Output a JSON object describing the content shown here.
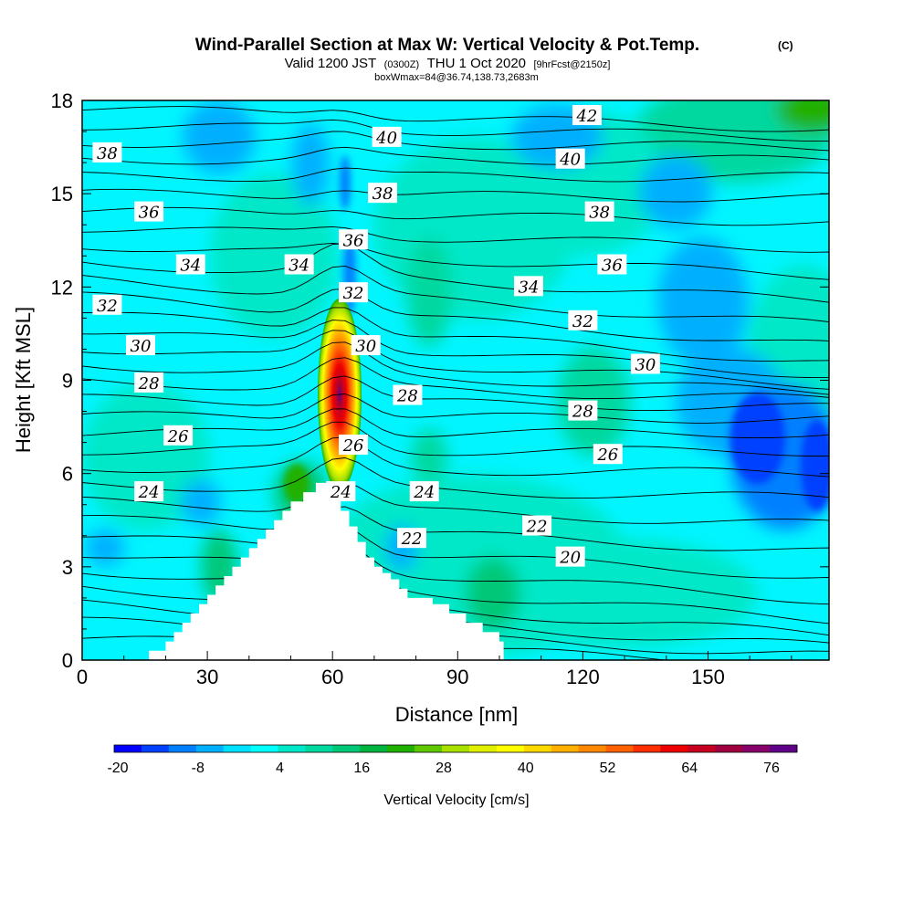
{
  "chart_data": {
    "type": "heatmap",
    "title": "Wind-Parallel Section at Max W: Vertical Velocity & Pot.Temp.",
    "copyright": "(C)",
    "subtitle_main": "Valid 1200 JST",
    "subtitle_utc": "(0300Z)",
    "subtitle_date": "THU 1 Oct 2020",
    "subtitle_fcst": "[9hrFcst@2150z]",
    "subtitle2": "boxWmax=84@36.74,138.73,2683m",
    "xlabel": "Distance [nm]",
    "ylabel": "Height [Kft MSL]",
    "xlim": [
      0,
      179
    ],
    "ylim": [
      0,
      18
    ],
    "xticks": [
      0,
      30,
      60,
      90,
      120,
      150
    ],
    "yticks": [
      0,
      3,
      6,
      9,
      12,
      15,
      18
    ],
    "colorbar_label": "Vertical Velocity [cm/s]",
    "colorbar_ticks": [
      "-20",
      "-8",
      "4",
      "16",
      "28",
      "40",
      "52",
      "64",
      "76"
    ],
    "colorbar_colors": [
      "#0000ff",
      "#0040ff",
      "#0080ff",
      "#00b0ff",
      "#00e0ff",
      "#00ffff",
      "#00e8c8",
      "#00d8a0",
      "#00c878",
      "#00b440",
      "#20b000",
      "#60c800",
      "#a8e000",
      "#e0f000",
      "#ffff00",
      "#ffd800",
      "#ffb000",
      "#ff8800",
      "#ff6000",
      "#ff3000",
      "#ee0000",
      "#c80020",
      "#a00040",
      "#88006a",
      "#600088"
    ],
    "terrain_profile": [
      [
        16,
        0
      ],
      [
        16,
        0.3
      ],
      [
        20,
        0.3
      ],
      [
        20,
        0.6
      ],
      [
        22,
        0.6
      ],
      [
        22,
        0.9
      ],
      [
        24,
        0.9
      ],
      [
        24,
        1.2
      ],
      [
        26,
        1.2
      ],
      [
        26,
        1.5
      ],
      [
        28,
        1.5
      ],
      [
        28,
        1.8
      ],
      [
        30,
        1.8
      ],
      [
        30,
        2.1
      ],
      [
        32,
        2.1
      ],
      [
        32,
        2.4
      ],
      [
        34,
        2.4
      ],
      [
        34,
        2.7
      ],
      [
        36,
        2.7
      ],
      [
        36,
        3.0
      ],
      [
        38,
        3.0
      ],
      [
        38,
        3.3
      ],
      [
        40,
        3.3
      ],
      [
        40,
        3.6
      ],
      [
        42,
        3.6
      ],
      [
        42,
        3.9
      ],
      [
        44,
        3.9
      ],
      [
        44,
        4.2
      ],
      [
        46,
        4.2
      ],
      [
        46,
        4.5
      ],
      [
        48,
        4.5
      ],
      [
        48,
        4.8
      ],
      [
        50,
        4.8
      ],
      [
        50,
        5.1
      ],
      [
        53,
        5.1
      ],
      [
        53,
        5.4
      ],
      [
        56,
        5.4
      ],
      [
        56,
        5.7
      ],
      [
        60,
        5.7
      ],
      [
        60,
        5.3
      ],
      [
        62,
        5.3
      ],
      [
        62,
        4.8
      ],
      [
        64,
        4.8
      ],
      [
        64,
        4.3
      ],
      [
        66,
        4.3
      ],
      [
        66,
        3.8
      ],
      [
        68,
        3.8
      ],
      [
        68,
        3.3
      ],
      [
        70,
        3.3
      ],
      [
        70,
        3.0
      ],
      [
        72,
        3.0
      ],
      [
        72,
        2.8
      ],
      [
        74,
        2.8
      ],
      [
        74,
        2.6
      ],
      [
        76,
        2.6
      ],
      [
        76,
        2.3
      ],
      [
        78,
        2.3
      ],
      [
        78,
        2.0
      ],
      [
        84,
        2.0
      ],
      [
        84,
        1.8
      ],
      [
        88,
        1.8
      ],
      [
        88,
        1.5
      ],
      [
        92,
        1.5
      ],
      [
        92,
        1.2
      ],
      [
        96,
        1.2
      ],
      [
        96,
        0.9
      ],
      [
        100,
        0.9
      ],
      [
        100,
        0.6
      ],
      [
        101,
        0.6
      ],
      [
        101,
        0
      ]
    ],
    "updraft_core": {
      "x_center": 61,
      "base_kft": 5.5,
      "top_kft": 11.5,
      "max_cm_s": 84
    },
    "theta_contour_labels": [
      {
        "text": "38",
        "x": 6,
        "y": 16.3
      },
      {
        "text": "40",
        "x": 73,
        "y": 16.8
      },
      {
        "text": "42",
        "x": 121,
        "y": 17.5
      },
      {
        "text": "40",
        "x": 117,
        "y": 16.1
      },
      {
        "text": "38",
        "x": 72,
        "y": 15.0
      },
      {
        "text": "36",
        "x": 16,
        "y": 14.4
      },
      {
        "text": "38",
        "x": 124,
        "y": 14.4
      },
      {
        "text": "36",
        "x": 65,
        "y": 13.5
      },
      {
        "text": "34",
        "x": 26,
        "y": 12.7
      },
      {
        "text": "34",
        "x": 52,
        "y": 12.7
      },
      {
        "text": "36",
        "x": 127,
        "y": 12.7
      },
      {
        "text": "32",
        "x": 6,
        "y": 11.4
      },
      {
        "text": "34",
        "x": 107,
        "y": 12.0
      },
      {
        "text": "32",
        "x": 65,
        "y": 11.8
      },
      {
        "text": "32",
        "x": 120,
        "y": 10.9
      },
      {
        "text": "30",
        "x": 14,
        "y": 10.1
      },
      {
        "text": "30",
        "x": 68,
        "y": 10.1
      },
      {
        "text": "30",
        "x": 135,
        "y": 9.5
      },
      {
        "text": "28",
        "x": 16,
        "y": 8.9
      },
      {
        "text": "28",
        "x": 78,
        "y": 8.5
      },
      {
        "text": "28",
        "x": 120,
        "y": 8.0
      },
      {
        "text": "26",
        "x": 23,
        "y": 7.2
      },
      {
        "text": "26",
        "x": 65,
        "y": 6.9
      },
      {
        "text": "26",
        "x": 126,
        "y": 6.6
      },
      {
        "text": "24",
        "x": 16,
        "y": 5.4
      },
      {
        "text": "24",
        "x": 62,
        "y": 5.4
      },
      {
        "text": "24",
        "x": 82,
        "y": 5.4
      },
      {
        "text": "22",
        "x": 109,
        "y": 4.3
      },
      {
        "text": "22",
        "x": 79,
        "y": 3.9
      },
      {
        "text": "20",
        "x": 117,
        "y": 3.3
      }
    ]
  }
}
